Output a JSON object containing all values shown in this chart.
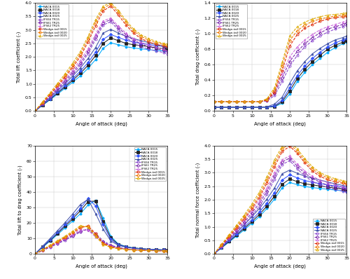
{
  "x": [
    0,
    2,
    4,
    6,
    8,
    10,
    12,
    14,
    16,
    18,
    20,
    22,
    24,
    26,
    28,
    30,
    32,
    34,
    35
  ],
  "legend_labels": [
    "NACA 0015",
    "NACA 0018",
    "NACA 0020",
    "NACA 0025",
    "IFS56 TR15",
    "IFS61 TR25",
    "IFS62 TR25",
    "Wedge-tail 0015",
    "Wedge-tail 0020",
    "Wedge-tail 0025"
  ],
  "colors": [
    "#00AAFF",
    "#222222",
    "#3355FF",
    "#4455AA",
    "#8844CC",
    "#7722AA",
    "#CC66DD",
    "#DD2200",
    "#EE7700",
    "#DDAA00"
  ],
  "markers": [
    "o",
    "s",
    "D",
    "^",
    "o",
    "D",
    "^",
    "o",
    "D",
    "^"
  ],
  "linestyles_solid": [
    true,
    true,
    true,
    true,
    false,
    false,
    false,
    false,
    false,
    false
  ],
  "xlabel": "Angle of attack (deg)",
  "ylabel_tl": "Total lift coefficient (-)",
  "ylabel_tr": "Total drag coefficient (-)",
  "ylabel_bl": "Total lift to drag coefficient (-)",
  "ylabel_br": "Total normal force coefficient (-)",
  "xlim": [
    0,
    35
  ],
  "xticks": [
    0,
    5,
    10,
    15,
    20,
    25,
    30,
    35
  ],
  "ylim_tl": [
    0,
    4.0
  ],
  "yticks_tl": [
    0,
    0.5,
    1.0,
    1.5,
    2.0,
    2.5,
    3.0,
    3.5,
    4.0
  ],
  "ylim_tr": [
    0,
    1.4
  ],
  "yticks_tr": [
    0,
    0.2,
    0.4,
    0.6,
    0.8,
    1.0,
    1.2,
    1.4
  ],
  "ylim_bl": [
    0,
    70
  ],
  "yticks_bl": [
    0,
    10,
    20,
    30,
    40,
    50,
    60,
    70
  ],
  "ylim_br": [
    0,
    4.0
  ],
  "yticks_br": [
    0,
    0.5,
    1.0,
    1.5,
    2.0,
    2.5,
    3.0,
    3.5,
    4.0
  ],
  "legend_loc_tl": "upper left",
  "legend_loc_tr": "upper left",
  "legend_loc_bl": "upper right",
  "legend_loc_br": "lower right",
  "CL": [
    [
      0.0,
      0.21,
      0.42,
      0.63,
      0.85,
      1.07,
      1.3,
      1.58,
      1.9,
      2.32,
      2.52,
      2.45,
      2.38,
      2.33,
      2.3,
      2.27,
      2.24,
      2.22,
      2.2
    ],
    [
      0.0,
      0.22,
      0.44,
      0.67,
      0.9,
      1.14,
      1.4,
      1.69,
      2.05,
      2.5,
      2.7,
      2.6,
      2.5,
      2.45,
      2.42,
      2.38,
      2.34,
      2.3,
      2.28
    ],
    [
      0.0,
      0.23,
      0.46,
      0.7,
      0.95,
      1.2,
      1.48,
      1.79,
      2.18,
      2.65,
      2.83,
      2.72,
      2.62,
      2.55,
      2.5,
      2.46,
      2.42,
      2.38,
      2.36
    ],
    [
      0.0,
      0.25,
      0.5,
      0.76,
      1.02,
      1.3,
      1.6,
      1.94,
      2.35,
      2.88,
      3.02,
      2.88,
      2.76,
      2.68,
      2.6,
      2.53,
      2.46,
      2.4,
      2.36
    ],
    [
      0.0,
      0.26,
      0.52,
      0.79,
      1.07,
      1.37,
      1.7,
      2.12,
      2.65,
      3.18,
      3.3,
      3.0,
      2.72,
      2.52,
      2.38,
      2.28,
      2.22,
      2.16,
      2.12
    ],
    [
      0.0,
      0.27,
      0.55,
      0.83,
      1.13,
      1.44,
      1.78,
      2.2,
      2.75,
      3.26,
      3.38,
      3.08,
      2.82,
      2.62,
      2.48,
      2.38,
      2.3,
      2.24,
      2.2
    ],
    [
      0.0,
      0.29,
      0.58,
      0.88,
      1.19,
      1.52,
      1.88,
      2.3,
      2.84,
      3.33,
      3.44,
      3.14,
      2.88,
      2.68,
      2.54,
      2.44,
      2.36,
      2.28,
      2.22
    ],
    [
      0.0,
      0.3,
      0.61,
      0.93,
      1.26,
      1.62,
      2.02,
      2.55,
      3.15,
      3.7,
      3.88,
      3.55,
      3.18,
      2.88,
      2.68,
      2.55,
      2.46,
      2.4,
      2.37
    ],
    [
      0.0,
      0.32,
      0.64,
      0.97,
      1.32,
      1.69,
      2.11,
      2.66,
      3.28,
      3.8,
      3.95,
      3.65,
      3.28,
      2.96,
      2.76,
      2.62,
      2.52,
      2.46,
      2.42
    ],
    [
      0.0,
      0.34,
      0.68,
      1.03,
      1.39,
      1.78,
      2.2,
      2.76,
      3.38,
      3.88,
      4.0,
      3.72,
      3.35,
      3.03,
      2.82,
      2.68,
      2.57,
      2.5,
      2.47
    ]
  ],
  "CD": [
    [
      0.05,
      0.05,
      0.05,
      0.05,
      0.05,
      0.05,
      0.05,
      0.05,
      0.055,
      0.1,
      0.22,
      0.38,
      0.5,
      0.6,
      0.68,
      0.76,
      0.82,
      0.87,
      0.89
    ],
    [
      0.05,
      0.05,
      0.05,
      0.05,
      0.05,
      0.05,
      0.05,
      0.05,
      0.06,
      0.12,
      0.26,
      0.42,
      0.54,
      0.64,
      0.72,
      0.8,
      0.85,
      0.89,
      0.91
    ],
    [
      0.05,
      0.05,
      0.05,
      0.05,
      0.05,
      0.05,
      0.05,
      0.05,
      0.07,
      0.14,
      0.3,
      0.46,
      0.58,
      0.68,
      0.76,
      0.83,
      0.88,
      0.92,
      0.94
    ],
    [
      0.05,
      0.05,
      0.05,
      0.05,
      0.05,
      0.05,
      0.05,
      0.055,
      0.09,
      0.18,
      0.36,
      0.52,
      0.64,
      0.74,
      0.81,
      0.87,
      0.92,
      0.95,
      0.97
    ],
    [
      0.12,
      0.12,
      0.12,
      0.12,
      0.12,
      0.12,
      0.12,
      0.13,
      0.2,
      0.38,
      0.58,
      0.72,
      0.83,
      0.91,
      0.97,
      1.02,
      1.06,
      1.09,
      1.11
    ],
    [
      0.12,
      0.12,
      0.12,
      0.12,
      0.12,
      0.12,
      0.12,
      0.14,
      0.23,
      0.43,
      0.64,
      0.77,
      0.87,
      0.95,
      1.01,
      1.06,
      1.09,
      1.12,
      1.14
    ],
    [
      0.12,
      0.12,
      0.12,
      0.12,
      0.12,
      0.12,
      0.12,
      0.15,
      0.26,
      0.48,
      0.7,
      0.83,
      0.92,
      0.99,
      1.05,
      1.09,
      1.12,
      1.15,
      1.17
    ],
    [
      0.12,
      0.12,
      0.12,
      0.12,
      0.12,
      0.12,
      0.12,
      0.14,
      0.24,
      0.52,
      0.84,
      0.99,
      1.07,
      1.12,
      1.16,
      1.19,
      1.21,
      1.22,
      1.23
    ],
    [
      0.12,
      0.12,
      0.12,
      0.12,
      0.12,
      0.12,
      0.12,
      0.15,
      0.27,
      0.58,
      0.91,
      1.04,
      1.11,
      1.16,
      1.19,
      1.21,
      1.23,
      1.24,
      1.25
    ],
    [
      0.12,
      0.12,
      0.12,
      0.12,
      0.12,
      0.12,
      0.12,
      0.16,
      0.3,
      0.63,
      0.97,
      1.09,
      1.15,
      1.19,
      1.22,
      1.24,
      1.25,
      1.26,
      1.27
    ]
  ],
  "LD": [
    [
      0.0,
      4.2,
      8.4,
      12.6,
      17.0,
      21.4,
      26.0,
      31.6,
      34.5,
      23.2,
      11.5,
      6.4,
      4.8,
      3.9,
      3.4,
      3.0,
      2.7,
      2.6,
      2.5
    ],
    [
      0.0,
      4.4,
      8.8,
      13.4,
      18.0,
      22.8,
      28.0,
      33.8,
      34.2,
      20.8,
      10.4,
      6.2,
      4.6,
      3.8,
      3.4,
      3.0,
      2.75,
      2.6,
      2.5
    ],
    [
      0.0,
      4.6,
      9.2,
      14.0,
      19.0,
      24.0,
      29.6,
      35.8,
      31.1,
      18.9,
      9.4,
      5.9,
      4.5,
      3.75,
      3.3,
      3.0,
      2.75,
      2.6,
      2.5
    ],
    [
      0.0,
      5.0,
      10.0,
      15.2,
      20.4,
      26.0,
      32.0,
      35.3,
      26.1,
      16.0,
      8.4,
      5.5,
      4.3,
      3.6,
      3.2,
      2.9,
      2.68,
      2.53,
      2.43
    ],
    [
      0.0,
      2.2,
      4.3,
      6.6,
      8.9,
      11.4,
      14.2,
      16.3,
      13.3,
      8.4,
      5.7,
      4.2,
      3.3,
      2.8,
      2.5,
      2.2,
      2.1,
      2.0,
      1.9
    ],
    [
      0.0,
      2.25,
      4.6,
      6.9,
      9.4,
      12.0,
      14.8,
      15.7,
      11.9,
      7.6,
      5.3,
      4.0,
      3.2,
      2.75,
      2.45,
      2.25,
      2.1,
      2.0,
      1.93
    ],
    [
      0.0,
      2.4,
      4.8,
      7.3,
      9.9,
      12.7,
      15.7,
      15.3,
      10.9,
      6.9,
      4.9,
      3.8,
      3.1,
      2.7,
      2.4,
      2.24,
      2.1,
      1.98,
      1.9
    ],
    [
      0.0,
      2.5,
      5.1,
      7.75,
      10.5,
      13.5,
      16.8,
      18.2,
      13.1,
      7.1,
      4.6,
      3.6,
      2.97,
      2.57,
      2.31,
      2.14,
      2.03,
      1.97,
      1.93
    ],
    [
      0.0,
      2.7,
      5.3,
      8.1,
      11.0,
      14.1,
      17.6,
      17.7,
      12.1,
      6.55,
      4.3,
      3.5,
      2.95,
      2.55,
      2.32,
      2.17,
      2.05,
      1.98,
      1.94
    ],
    [
      0.0,
      2.8,
      5.7,
      8.6,
      11.6,
      14.8,
      18.3,
      17.3,
      11.3,
      6.2,
      4.1,
      3.4,
      2.9,
      2.55,
      2.3,
      2.16,
      2.06,
      1.98,
      1.94
    ]
  ],
  "CN": [
    [
      0.0,
      0.22,
      0.44,
      0.66,
      0.89,
      1.13,
      1.38,
      1.68,
      2.03,
      2.44,
      2.64,
      2.56,
      2.49,
      2.45,
      2.42,
      2.39,
      2.36,
      2.33,
      2.31
    ],
    [
      0.0,
      0.23,
      0.46,
      0.7,
      0.94,
      1.19,
      1.46,
      1.77,
      2.14,
      2.57,
      2.77,
      2.67,
      2.59,
      2.55,
      2.51,
      2.47,
      2.43,
      2.4,
      2.38
    ],
    [
      0.0,
      0.24,
      0.49,
      0.74,
      0.99,
      1.26,
      1.55,
      1.88,
      2.27,
      2.73,
      2.92,
      2.81,
      2.71,
      2.65,
      2.6,
      2.55,
      2.51,
      2.47,
      2.45
    ],
    [
      0.0,
      0.26,
      0.53,
      0.8,
      1.07,
      1.37,
      1.68,
      2.03,
      2.44,
      2.96,
      3.1,
      2.98,
      2.87,
      2.8,
      2.73,
      2.66,
      2.59,
      2.53,
      2.5
    ],
    [
      0.0,
      0.27,
      0.54,
      0.82,
      1.11,
      1.42,
      1.76,
      2.2,
      2.76,
      3.3,
      3.45,
      3.14,
      2.88,
      2.68,
      2.55,
      2.45,
      2.38,
      2.32,
      2.28
    ],
    [
      0.0,
      0.28,
      0.57,
      0.87,
      1.18,
      1.51,
      1.87,
      2.32,
      2.88,
      3.4,
      3.54,
      3.24,
      2.98,
      2.79,
      2.65,
      2.54,
      2.47,
      2.41,
      2.37
    ],
    [
      0.0,
      0.3,
      0.61,
      0.92,
      1.25,
      1.6,
      1.98,
      2.43,
      3.0,
      3.48,
      3.62,
      3.32,
      3.06,
      2.87,
      2.73,
      2.63,
      2.55,
      2.48,
      2.44
    ],
    [
      0.0,
      0.31,
      0.63,
      0.96,
      1.3,
      1.67,
      2.08,
      2.62,
      3.22,
      3.78,
      3.98,
      3.72,
      3.36,
      3.06,
      2.87,
      2.74,
      2.66,
      2.61,
      2.58
    ],
    [
      0.0,
      0.33,
      0.67,
      1.01,
      1.37,
      1.75,
      2.17,
      2.73,
      3.35,
      3.88,
      4.06,
      3.8,
      3.44,
      3.14,
      2.94,
      2.81,
      2.72,
      2.66,
      2.63
    ],
    [
      0.0,
      0.35,
      0.71,
      1.07,
      1.44,
      1.84,
      2.28,
      2.85,
      3.47,
      3.98,
      4.14,
      3.88,
      3.52,
      3.22,
      3.01,
      2.87,
      2.78,
      2.71,
      2.68
    ]
  ]
}
